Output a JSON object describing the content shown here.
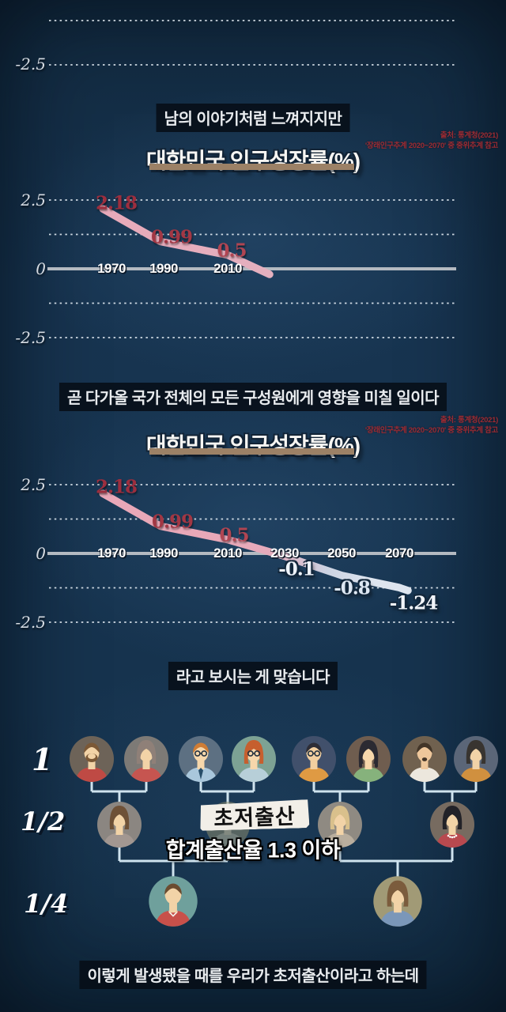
{
  "frames": {
    "frame1": {
      "caption": "남의 이야기처럼 느껴지지만",
      "partial_axis_tick": "-2.5"
    },
    "frame2": {
      "caption": "곧 다가올 국가 전체의 모든 구성원에게 영향을 미칠 일이다"
    },
    "frame3": {
      "caption": "라고 보시는 게 맞습니다"
    },
    "frame4": {
      "caption": "이렇게 발생됐을 때를 우리가 초저출산이라고 하는데"
    }
  },
  "chart_data": [
    {
      "type": "line",
      "title": "대한민국 인구성장률(%)",
      "source_line1": "출처: 통계청(2021)",
      "source_line2": "'장래인구추계 2020~2070' 중 중위추계 참고",
      "categories": [
        "1970",
        "1990",
        "2010"
      ],
      "values": [
        2.18,
        0.99,
        0.5
      ],
      "point_labels": [
        "2.18",
        "0.99",
        "0.5"
      ],
      "point_label_colors": [
        "#9c2e3e",
        "#a23744",
        "#b04552"
      ],
      "y_ticks": [
        {
          "label": "2.5",
          "value": 2.5
        },
        {
          "label": "0",
          "value": 0
        },
        {
          "label": "-2.5",
          "value": -2.5
        }
      ],
      "gridlines": [
        2.5,
        1.25,
        -1.25,
        -2.5
      ],
      "ylim": [
        -2.5,
        2.5
      ],
      "grid": "dotted",
      "legend": "none",
      "line_colors": {
        "above_zero": "#e9a8b8",
        "end": "#e4b0bf"
      }
    },
    {
      "type": "line",
      "title": "대한민국 인구성장률(%)",
      "source_line1": "출처: 통계청(2021)",
      "source_line2": "'장래인구추계 2020~2070' 중 중위추계 참고",
      "categories": [
        "1970",
        "1990",
        "2010",
        "2030",
        "2050",
        "2070"
      ],
      "values": [
        2.18,
        0.99,
        0.5,
        -0.1,
        -0.8,
        -1.24
      ],
      "point_labels": [
        "2.18",
        "0.99",
        "0.5",
        "-0.1",
        "-0.8",
        "-1.24"
      ],
      "point_label_colors": [
        "#9c2e3e",
        "#a23744",
        "#b04552",
        "#eef3fa",
        "#dde7f2",
        "#f2f5fa"
      ],
      "y_ticks": [
        {
          "label": "2.5",
          "value": 2.5
        },
        {
          "label": "0",
          "value": 0
        },
        {
          "label": "-2.5",
          "value": -2.5
        }
      ],
      "gridlines": [
        2.5,
        1.25,
        -1.25,
        -2.5
      ],
      "ylim": [
        -2.5,
        2.5
      ],
      "grid": "dotted",
      "legend": "none",
      "line_colors": {
        "above_zero": "#e9a8b8",
        "below_zero": "#ccd3e2",
        "end": "#dee5ef"
      }
    }
  ],
  "family_diagram": {
    "stamp": "초저출산",
    "subtitle": "합계출산율 1.3 이하",
    "generations": [
      {
        "label": "1"
      },
      {
        "label": "1/2"
      },
      {
        "label": "1/4"
      }
    ],
    "connector_color": "#cfe3ee",
    "avatars": {
      "row1": [
        {
          "name": "man-beard-red-shirt",
          "x": 116,
          "bg": "#6d6358",
          "hair": "#7b5836",
          "skin": "#f2d3a7",
          "shirt": "#bf4a44",
          "sex": "m",
          "beard": true
        },
        {
          "name": "woman-gray-bob-red-shirt",
          "x": 185,
          "bg": "#7d7a76",
          "hair": "#8f8078",
          "skin": "#f2d3a7",
          "shirt": "#c65550",
          "sex": "f"
        },
        {
          "name": "man-orange-hair-glasses-tie",
          "x": 254,
          "bg": "#5d7082",
          "hair": "#cf7d35",
          "skin": "#f6d7ab",
          "shirt": "#a9c7dc",
          "sex": "m",
          "glasses": true,
          "tie": "#274d68"
        },
        {
          "name": "woman-orange-hair-glasses",
          "x": 321,
          "bg": "#7da294",
          "hair": "#c65f2e",
          "skin": "#f6d7ab",
          "shirt": "#b7cfd8",
          "sex": "f",
          "glasses": true
        },
        {
          "name": "man-black-hair-glasses-orange-shirt",
          "x": 397,
          "bg": "#41506b",
          "hair": "#2d2d36",
          "skin": "#f2cf9f",
          "shirt": "#df9a43",
          "sex": "m",
          "glasses": true
        },
        {
          "name": "woman-braids-green-shirt",
          "x": 466,
          "bg": "#6f5d4f",
          "hair": "#2b2a32",
          "skin": "#f6d7ab",
          "shirt": "#86b27c",
          "sex": "f",
          "braids": true
        },
        {
          "name": "man-goatee-white-shirt",
          "x": 537,
          "bg": "#70614f",
          "hair": "#423528",
          "skin": "#eec79b",
          "shirt": "#ece7dd",
          "sex": "m",
          "goatee": true
        },
        {
          "name": "woman-dark-hair-orange-top",
          "x": 602,
          "bg": "#5b6678",
          "hair": "#383430",
          "skin": "#f2d3a7",
          "shirt": "#d0903f",
          "sex": "f"
        }
      ],
      "row2": [
        {
          "name": "woman-brown-hair-gray-top",
          "x": 151,
          "bg": "#8b8681",
          "hair": "#6e5137",
          "skin": "#f2d3a7",
          "shirt": "#a29791",
          "sex": "f"
        },
        {
          "name": "faded-person",
          "x": 288,
          "bg": "#93906c",
          "hair": "#d5c795",
          "skin": "#e9d9ac",
          "shirt": "#c9c2a0",
          "sex": "m",
          "opacity": 0.5
        },
        {
          "name": "woman-tan-hair",
          "x": 430,
          "bg": "#8f8a82",
          "hair": "#d9c08c",
          "skin": "#f2d3a7",
          "shirt": "#b9ae9e",
          "sex": "f"
        },
        {
          "name": "woman-red-dress-necklace",
          "x": 572,
          "bg": "#776b60",
          "hair": "#222228",
          "skin": "#f2d3a7",
          "shirt": "#b8494f",
          "sex": "f",
          "necklace": true
        }
      ],
      "row3": [
        {
          "name": "boy-red-shirt-collar",
          "x": 219,
          "bg": "#6fa09c",
          "hair": "#6b4c30",
          "skin": "#f2d3a7",
          "shirt": "#c8504a",
          "sex": "m",
          "collar": true
        },
        {
          "name": "girl-blue-top",
          "x": 503,
          "bg": "#a19a76",
          "hair": "#7b5c3d",
          "skin": "#f2d3a7",
          "shirt": "#7b97b9",
          "sex": "f"
        }
      ]
    }
  }
}
